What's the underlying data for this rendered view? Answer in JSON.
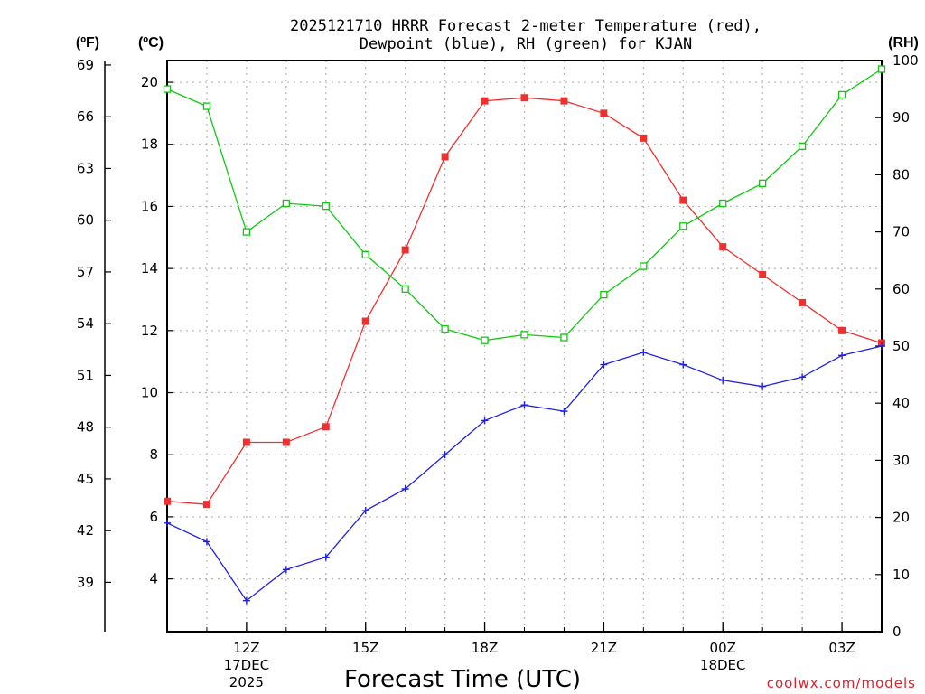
{
  "colors": {
    "temp": "#f03030",
    "dewpoint": "#2020e0",
    "rh": "#10c810",
    "grid": "#b4b4b4",
    "credit": "#e0202a"
  },
  "chart_data": {
    "type": "line",
    "title_lines": [
      "2025121710 HRRR Forecast 2-meter Temperature (red),",
      "Dewpoint (blue), RH (green) for KJAN"
    ],
    "xlabel": "Forecast Time (UTC)",
    "credit": "coolwx.com/models",
    "unit_labels": {
      "fahrenheit": "(ºF)",
      "celsius": "(ºC)",
      "rh": "(RH)"
    },
    "x_hours": [
      10,
      11,
      12,
      13,
      14,
      15,
      16,
      17,
      18,
      19,
      20,
      21,
      22,
      23,
      24,
      25,
      26,
      27,
      28
    ],
    "xlim": [
      10,
      28
    ],
    "x_ticks": [
      {
        "hour": 12,
        "lines": [
          "12Z",
          "17DEC",
          "2025"
        ]
      },
      {
        "hour": 15,
        "lines": [
          "15Z"
        ]
      },
      {
        "hour": 18,
        "lines": [
          "18Z"
        ]
      },
      {
        "hour": 21,
        "lines": [
          "21Z"
        ]
      },
      {
        "hour": 24,
        "lines": [
          "00Z",
          "18DEC"
        ]
      },
      {
        "hour": 27,
        "lines": [
          "03Z"
        ]
      }
    ],
    "celsius_axis": {
      "ylim": [
        2.3,
        20.7
      ],
      "ticks": [
        4,
        6,
        8,
        10,
        12,
        14,
        16,
        18,
        20
      ]
    },
    "fahrenheit_axis": {
      "ticks": [
        39,
        42,
        45,
        48,
        51,
        54,
        57,
        60,
        63,
        66,
        69
      ]
    },
    "rh_axis": {
      "ylim": [
        0,
        100
      ],
      "ticks": [
        0,
        10,
        20,
        30,
        40,
        50,
        60,
        70,
        80,
        90,
        100
      ]
    },
    "series": [
      {
        "name": "Temperature",
        "axis": "celsius",
        "values": [
          6.5,
          6.4,
          8.4,
          8.4,
          8.9,
          12.3,
          14.6,
          17.6,
          19.4,
          19.5,
          19.4,
          19.0,
          18.2,
          16.2,
          14.7,
          13.8,
          12.9,
          12.0,
          11.6
        ]
      },
      {
        "name": "Dewpoint",
        "axis": "celsius",
        "values": [
          5.8,
          5.2,
          3.3,
          4.3,
          4.7,
          6.2,
          6.9,
          8.0,
          9.1,
          9.6,
          9.4,
          10.9,
          11.3,
          10.9,
          10.4,
          10.2,
          10.5,
          11.2,
          11.5
        ]
      },
      {
        "name": "Relative Humidity",
        "axis": "rh",
        "values": [
          95,
          92,
          70,
          75,
          74.5,
          66,
          60,
          53,
          51,
          52,
          51.5,
          59,
          64,
          71,
          75,
          78.5,
          85,
          94,
          98.5
        ]
      }
    ]
  }
}
